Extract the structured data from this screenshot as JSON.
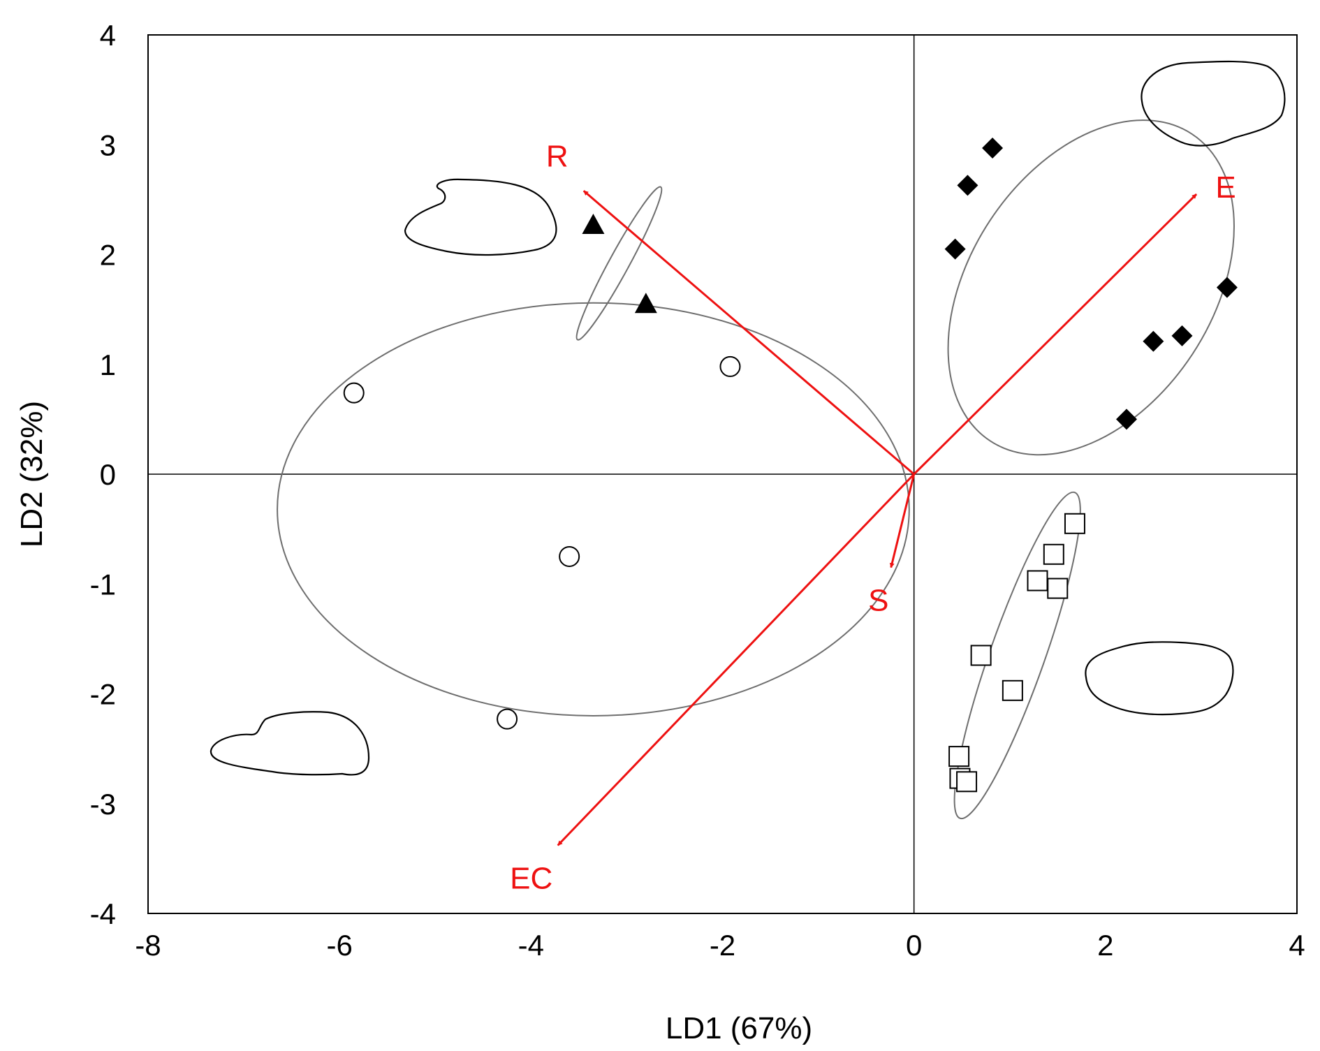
{
  "chart_data": {
    "type": "scatter",
    "title": "",
    "xlabel": "LD1 (67%)",
    "ylabel": "LD2 (32%)",
    "xlim": [
      -8,
      4
    ],
    "ylim": [
      -4,
      4
    ],
    "xticks": [
      -8,
      -6,
      -4,
      -2,
      0,
      2,
      4
    ],
    "yticks": [
      -4,
      -3,
      -2,
      -1,
      0,
      1,
      2,
      3,
      4
    ],
    "grid": false,
    "zero_lines": true,
    "legend": "none",
    "series": [
      {
        "marker": "open-circle",
        "points": [
          [
            -5.85,
            0.74
          ],
          [
            -1.92,
            0.98
          ],
          [
            -3.6,
            -0.75
          ],
          [
            -4.25,
            -2.23
          ]
        ],
        "ellipse": {
          "cx": -3.35,
          "cy": -0.32,
          "rx": 3.3,
          "ry": 1.88,
          "angle": 0
        }
      },
      {
        "marker": "filled-triangle",
        "points": [
          [
            -3.35,
            2.27
          ],
          [
            -2.8,
            1.55
          ]
        ],
        "ellipse": {
          "cx": -3.08,
          "cy": 1.92,
          "rx": 0.82,
          "ry": 0.1,
          "angle": -58
        }
      },
      {
        "marker": "filled-diamond",
        "points": [
          [
            0.82,
            2.97
          ],
          [
            0.56,
            2.63
          ],
          [
            0.43,
            2.05
          ],
          [
            3.27,
            1.7
          ],
          [
            2.8,
            1.26
          ],
          [
            2.5,
            1.21
          ],
          [
            2.22,
            0.5
          ]
        ],
        "ellipse": {
          "cx": 1.85,
          "cy": 1.7,
          "rx": 1.75,
          "ry": 1.2,
          "angle": -53
        }
      },
      {
        "marker": "open-square",
        "points": [
          [
            1.68,
            -0.45
          ],
          [
            1.46,
            -0.73
          ],
          [
            1.29,
            -0.97
          ],
          [
            1.5,
            -1.04
          ],
          [
            0.7,
            -1.65
          ],
          [
            1.03,
            -1.97
          ],
          [
            0.47,
            -2.57
          ],
          [
            0.48,
            -2.77
          ],
          [
            0.55,
            -2.8
          ]
        ],
        "ellipse": {
          "cx": 1.08,
          "cy": -1.65,
          "rx": 1.6,
          "ry": 0.28,
          "angle": -68
        }
      }
    ],
    "vectors": [
      {
        "label": "R",
        "x": -3.45,
        "y": 2.58
      },
      {
        "label": "E",
        "x": 2.95,
        "y": 2.55
      },
      {
        "label": "S",
        "x": -0.24,
        "y": -0.85
      },
      {
        "label": "EC",
        "x": -3.72,
        "y": -3.38
      }
    ],
    "shape_outlines": [
      {
        "name": "seed-outline-upper-left",
        "position": "upper-left"
      },
      {
        "name": "seed-outline-lower-left",
        "position": "lower-left"
      },
      {
        "name": "seed-outline-upper-right",
        "position": "upper-right"
      },
      {
        "name": "seed-outline-lower-right",
        "position": "lower-right"
      }
    ]
  },
  "colors": {
    "vector": "#ee1111",
    "ellipse": "#6e6e6e",
    "axis": "#000000",
    "marker": "#000000",
    "background": "#ffffff"
  }
}
